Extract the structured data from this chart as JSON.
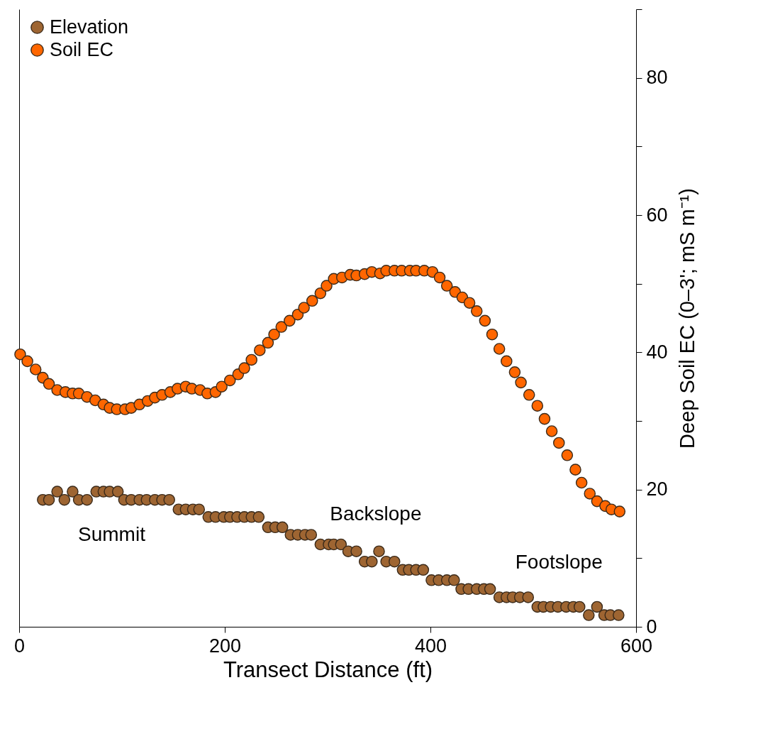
{
  "chart_data": {
    "type": "scatter",
    "xlabel": "Transect Distance (ft)",
    "ylabel": "Deep Soil EC (0–3'; mS m⁻¹)",
    "xlim": [
      0,
      600
    ],
    "xticks": [
      0,
      200,
      400,
      600
    ],
    "ylim": [
      0,
      90
    ],
    "yticks": [
      0,
      {
        "value": 10,
        "label": null
      },
      20,
      {
        "value": 30,
        "label": null
      },
      40,
      {
        "value": 50,
        "label": null
      },
      60,
      {
        "value": 70,
        "label": null
      },
      80,
      {
        "value": 90,
        "label": null
      }
    ],
    "legend": "top left",
    "marker": "circle",
    "series": [
      {
        "name": "Elevation",
        "color": "#9e6532",
        "x": [
          23,
          29,
          37,
          44,
          52,
          58,
          66,
          75,
          82,
          88,
          96,
          102,
          109,
          117,
          124,
          132,
          139,
          146,
          155,
          162,
          169,
          175,
          184,
          191,
          199,
          205,
          212,
          219,
          226,
          233,
          242,
          249,
          256,
          264,
          271,
          278,
          284,
          293,
          301,
          306,
          313,
          320,
          328,
          336,
          343,
          350,
          357,
          365,
          373,
          379,
          386,
          393,
          401,
          408,
          416,
          423,
          430,
          437,
          445,
          452,
          458,
          467,
          474,
          480,
          487,
          495,
          504,
          510,
          517,
          524,
          532,
          539,
          545,
          554,
          562,
          569,
          575,
          583
        ],
        "values": [
          18.5,
          18.5,
          19.7,
          18.5,
          19.7,
          18.5,
          18.5,
          19.7,
          19.7,
          19.7,
          19.7,
          18.5,
          18.5,
          18.5,
          18.5,
          18.5,
          18.5,
          18.5,
          17.1,
          17.1,
          17.1,
          17.1,
          16.0,
          16.0,
          16.0,
          16.0,
          16.0,
          16.0,
          16.0,
          16.0,
          14.5,
          14.5,
          14.5,
          13.4,
          13.4,
          13.4,
          13.4,
          12.0,
          12.0,
          12.0,
          12.0,
          11.0,
          11.0,
          9.5,
          9.5,
          11.0,
          9.5,
          9.5,
          8.3,
          8.3,
          8.3,
          8.3,
          6.8,
          6.8,
          6.8,
          6.8,
          5.5,
          5.5,
          5.5,
          5.5,
          5.5,
          4.3,
          4.3,
          4.3,
          4.3,
          4.3,
          2.9,
          2.9,
          2.9,
          2.9,
          2.9,
          2.9,
          2.9,
          1.7,
          2.9,
          1.7,
          1.7,
          1.7
        ]
      },
      {
        "name": "Soil EC",
        "color": "#ff6600",
        "x": [
          1,
          8,
          16,
          23,
          29,
          37,
          45,
          52,
          58,
          66,
          74,
          82,
          88,
          95,
          103,
          109,
          117,
          125,
          132,
          139,
          147,
          154,
          162,
          168,
          176,
          183,
          191,
          197,
          205,
          213,
          219,
          226,
          234,
          242,
          248,
          255,
          263,
          271,
          277,
          285,
          293,
          299,
          306,
          314,
          322,
          328,
          336,
          343,
          351,
          357,
          365,
          372,
          380,
          386,
          394,
          402,
          409,
          416,
          424,
          431,
          438,
          445,
          453,
          460,
          467,
          474,
          482,
          488,
          496,
          504,
          511,
          518,
          525,
          533,
          541,
          547,
          555,
          562,
          570,
          576,
          584
        ],
        "values": [
          39.7,
          38.7,
          37.5,
          36.3,
          35.4,
          34.5,
          34.2,
          34.0,
          34.0,
          33.5,
          33.0,
          32.4,
          31.9,
          31.7,
          31.7,
          31.9,
          32.4,
          32.9,
          33.4,
          33.8,
          34.2,
          34.7,
          35.0,
          34.7,
          34.5,
          34.0,
          34.2,
          35.0,
          35.9,
          36.8,
          37.7,
          38.9,
          40.3,
          41.4,
          42.6,
          43.7,
          44.6,
          45.5,
          46.5,
          47.5,
          48.6,
          49.7,
          50.7,
          50.9,
          51.3,
          51.2,
          51.4,
          51.7,
          51.5,
          51.9,
          51.9,
          51.9,
          51.9,
          51.9,
          51.9,
          51.7,
          50.9,
          49.7,
          48.8,
          48.0,
          47.2,
          46.0,
          44.6,
          42.6,
          40.5,
          38.7,
          37.1,
          35.6,
          33.8,
          32.2,
          30.3,
          28.5,
          26.8,
          25.0,
          22.9,
          21.0,
          19.4,
          18.3,
          17.6,
          17.1,
          16.8
        ]
      }
    ],
    "annotations": [
      "Summit",
      "Backslope",
      "Footslope"
    ]
  }
}
